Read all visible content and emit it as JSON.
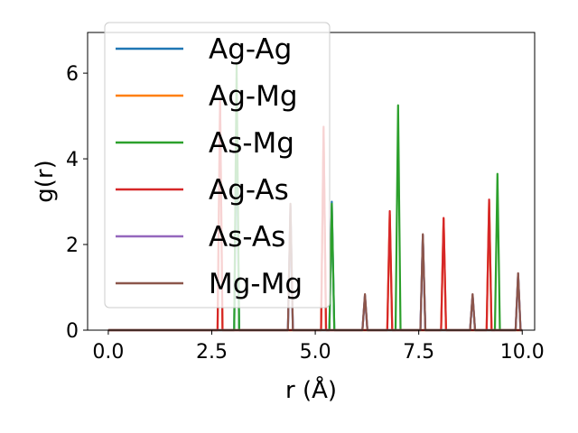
{
  "chart_data": {
    "type": "line",
    "xlabel": "r (Å)",
    "ylabel": "g(r)",
    "xlim": [
      -0.5,
      10.3
    ],
    "ylim": [
      0,
      6.95
    ],
    "xticks": [
      0.0,
      2.5,
      5.0,
      7.5,
      10.0
    ],
    "xtick_labels": [
      "0.0",
      "2.5",
      "5.0",
      "7.5",
      "10.0"
    ],
    "yticks": [
      0,
      2,
      4,
      6
    ],
    "ytick_labels": [
      "0",
      "2",
      "4",
      "6"
    ],
    "grid": false,
    "legend_position": "top-left",
    "series": [
      {
        "name": "Ag-Ag",
        "color": "#1f77b4",
        "peaks": [
          [
            3.1,
            5.0
          ],
          [
            4.4,
            2.8
          ],
          [
            5.4,
            3.0
          ],
          [
            6.2,
            0.8
          ],
          [
            7.6,
            2.2
          ],
          [
            8.8,
            0.8
          ],
          [
            9.9,
            1.3
          ]
        ]
      },
      {
        "name": "Ag-Mg",
        "color": "#ff7f0e",
        "peaks": [
          [
            2.7,
            5.3
          ],
          [
            5.2,
            4.7
          ],
          [
            6.8,
            2.7
          ],
          [
            8.1,
            2.6
          ],
          [
            9.2,
            3.0
          ]
        ]
      },
      {
        "name": "As-Mg",
        "color": "#2ca02c",
        "peaks": [
          [
            3.1,
            6.2
          ],
          [
            5.4,
            2.95
          ],
          [
            7.0,
            5.25
          ],
          [
            9.4,
            3.65
          ]
        ]
      },
      {
        "name": "Ag-As",
        "color": "#d62728",
        "peaks": [
          [
            2.7,
            5.4
          ],
          [
            5.2,
            4.75
          ],
          [
            6.8,
            2.78
          ],
          [
            8.1,
            2.62
          ],
          [
            9.2,
            3.05
          ]
        ]
      },
      {
        "name": "As-As",
        "color": "#9467bd",
        "peaks": [
          [
            4.4,
            2.9
          ],
          [
            6.2,
            0.82
          ],
          [
            7.6,
            2.22
          ],
          [
            8.8,
            0.83
          ],
          [
            9.9,
            1.32
          ]
        ]
      },
      {
        "name": "Mg-Mg",
        "color": "#8c564b",
        "peaks": [
          [
            4.4,
            2.95
          ],
          [
            6.2,
            0.84
          ],
          [
            7.6,
            2.24
          ],
          [
            8.8,
            0.84
          ],
          [
            9.9,
            1.33
          ]
        ]
      }
    ]
  }
}
